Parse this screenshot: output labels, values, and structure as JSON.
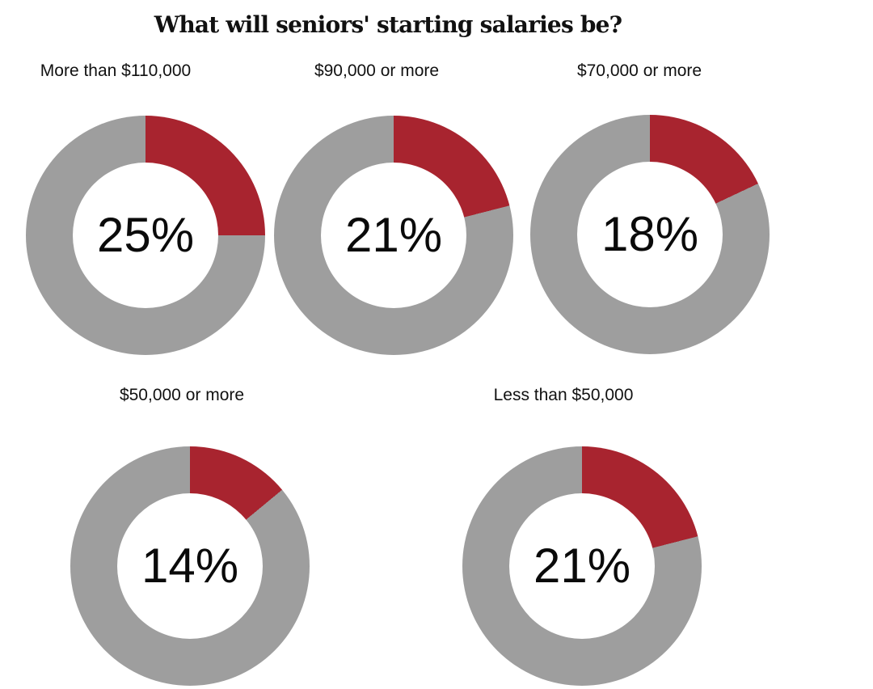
{
  "chart_data": {
    "type": "pie",
    "subtype": "donut-small-multiples",
    "title": "What will seniors' starting salaries be?",
    "categories": [
      "More than $110,000",
      "$90,000 or more",
      "$70,000 or more",
      "$50,000 or more",
      "Less than $50,000"
    ],
    "values": [
      25,
      21,
      18,
      14,
      21
    ],
    "charts": [
      {
        "label": "More than $110,000",
        "value": 25,
        "value_label": "25%"
      },
      {
        "label": "$90,000 or more",
        "value": 21,
        "value_label": "21%"
      },
      {
        "label": "$70,000 or more",
        "value": 18,
        "value_label": "18%"
      },
      {
        "label": "$50,000 or more",
        "value": 14,
        "value_label": "14%"
      },
      {
        "label": "Less than $50,000",
        "value": 21,
        "value_label": "21%"
      }
    ],
    "colors": {
      "accent": "#A8242F",
      "remainder": "#9E9E9E",
      "text": "#0A0A0A",
      "background": "#FFFFFF"
    },
    "layout": {
      "rows": [
        3,
        2
      ],
      "start_angle_deg": 0,
      "direction": "clockwise",
      "legend": "none",
      "hole_ratio": 0.61
    }
  }
}
